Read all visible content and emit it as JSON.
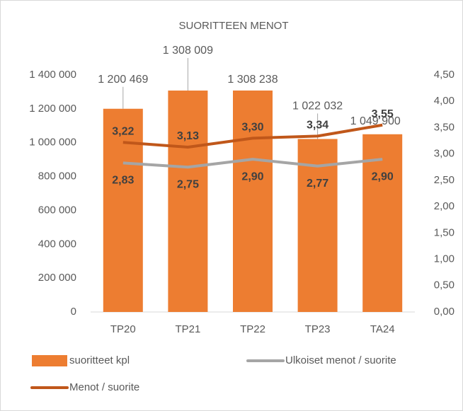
{
  "chart_data": {
    "type": "combo",
    "title": "SUORITTEEN MENOT",
    "categories": [
      "TP20",
      "TP21",
      "TP22",
      "TP23",
      "TA24"
    ],
    "series": [
      {
        "name": "suoritteet kpl",
        "type": "bar",
        "color": "#ed7d31",
        "values": [
          1200469,
          1308009,
          1308238,
          1022032,
          1049900
        ],
        "value_labels": [
          "1 200 469",
          "1 308 009",
          "1 308 238",
          "1 022 032",
          "1 049 900"
        ]
      },
      {
        "name": "Ulkoiset menot / suorite",
        "type": "line",
        "axis": "y2",
        "color": "#a5a5a5",
        "values": [
          2.83,
          2.75,
          2.9,
          2.77,
          2.9
        ],
        "value_labels": [
          "2,83",
          "2,75",
          "2,90",
          "2,77",
          "2,90"
        ]
      },
      {
        "name": "Menot / suorite",
        "type": "line",
        "axis": "y2",
        "color": "#c0571a",
        "values": [
          3.22,
          3.13,
          3.3,
          3.34,
          3.55
        ],
        "value_labels": [
          "3,22",
          "3,13",
          "3,30",
          "3,34",
          "3,55"
        ]
      }
    ],
    "ylim": [
      0,
      1400000
    ],
    "yticks": [
      0,
      {
        "value": 200000,
        "label": "200 000"
      },
      {
        "value": 400000,
        "label": "400 000"
      },
      {
        "value": 600000,
        "label": "600 000"
      },
      {
        "value": 800000,
        "label": "800 000"
      },
      {
        "value": 1000000,
        "label": "1 000 000"
      },
      {
        "value": 1200000,
        "label": "1 200 000"
      },
      {
        "value": 1400000,
        "label": "1 400 000"
      }
    ],
    "y2lim": [
      0,
      4.5
    ],
    "y2ticks": [
      {
        "value": 0,
        "label": "0,00"
      },
      {
        "value": 0.5,
        "label": "0,50"
      },
      {
        "value": 1,
        "label": "1,00"
      },
      {
        "value": 1.5,
        "label": "1,50"
      },
      {
        "value": 2,
        "label": "2,00"
      },
      {
        "value": 2.5,
        "label": "2,50"
      },
      {
        "value": 3,
        "label": "3,00"
      },
      {
        "value": 3.5,
        "label": "3,50"
      },
      {
        "value": 4,
        "label": "4,00"
      },
      {
        "value": 4.5,
        "label": "4,50"
      }
    ],
    "grid": false,
    "legend": "bottom"
  }
}
